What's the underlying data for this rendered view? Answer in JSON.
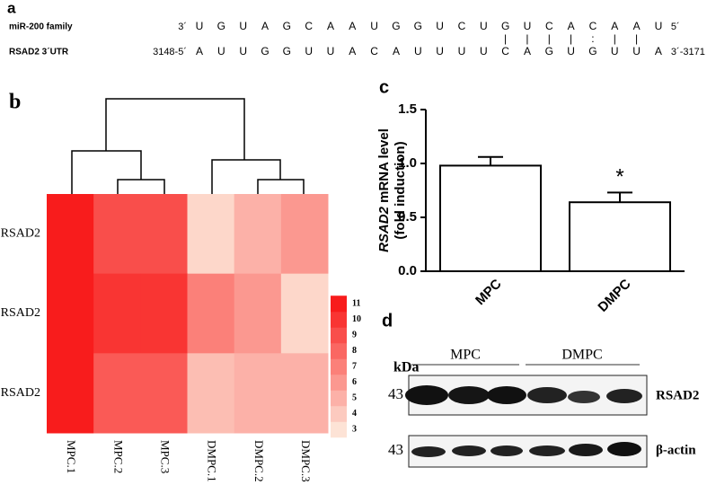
{
  "panel_labels": [
    "a",
    "b",
    "c",
    "d"
  ],
  "sequence": {
    "rows": [
      {
        "name": "miR-200 family",
        "start": "3´",
        "bases": [
          "U",
          "G",
          "U",
          "A",
          "G",
          "C",
          "A",
          "A",
          "U",
          "G",
          "G",
          "U",
          "C",
          "U",
          "G",
          "U",
          "C",
          "A",
          "C",
          "A",
          "A",
          "U"
        ],
        "end": "5´"
      },
      {
        "name": "RSAD2 3´UTR",
        "start": "3148-5´",
        "bases": [
          "A",
          "U",
          "U",
          "G",
          "G",
          "U",
          "U",
          "A",
          "C",
          "A",
          "U",
          "U",
          "U",
          "U",
          "C",
          "A",
          "G",
          "U",
          "G",
          "U",
          "U",
          "A"
        ],
        "end": "3´-3171"
      }
    ],
    "pairing": [
      null,
      null,
      null,
      null,
      null,
      null,
      null,
      null,
      null,
      null,
      null,
      null,
      null,
      null,
      "|",
      "|",
      "|",
      "|",
      ":",
      "|",
      "|",
      null
    ]
  },
  "chart_data": [
    {
      "type": "heatmap",
      "categories": [
        "MPC.1",
        "MPC.2",
        "MPC.3",
        "DMPC.1",
        "DMPC.2",
        "DMPC.3"
      ],
      "rows": [
        "RSAD2",
        "RSAD2",
        "RSAD2"
      ],
      "values": [
        [
          11,
          9,
          9,
          3.5,
          5,
          6
        ],
        [
          11,
          10,
          10,
          7,
          6,
          3.5
        ],
        [
          11,
          8.5,
          8.5,
          4.5,
          5,
          5
        ]
      ],
      "colorbar_lim": [
        3,
        11
      ],
      "colorbar_ticks": [
        3,
        4,
        5,
        6,
        7,
        8,
        9,
        10,
        11
      ],
      "color_low": "#fde3d6",
      "color_high": "#f81c1c"
    },
    {
      "type": "bar",
      "ylabel": {
        "italic": "RSAD2",
        "rest": " mRNA level",
        "line2": "(fold induction)"
      },
      "categories": [
        "MPC",
        "DMPC"
      ],
      "values": [
        0.98,
        0.64
      ],
      "errors": [
        0.08,
        0.09
      ],
      "ylim": [
        0,
        1.5
      ],
      "yticks": [
        {
          "value": 0,
          "label": "0.0"
        },
        {
          "value": 0.5,
          "label": "0.5"
        },
        {
          "value": 1,
          "label": "1.0"
        },
        {
          "value": 1.5,
          "label": "1.5"
        }
      ],
      "annotation": "*",
      "color": "#ffffff"
    }
  ],
  "blot": {
    "unit": "kDa",
    "groups": [
      "MPC",
      "DMPC"
    ],
    "sizes": [
      "43",
      "43"
    ],
    "proteins": [
      "RSAD2",
      "β-actin"
    ]
  }
}
